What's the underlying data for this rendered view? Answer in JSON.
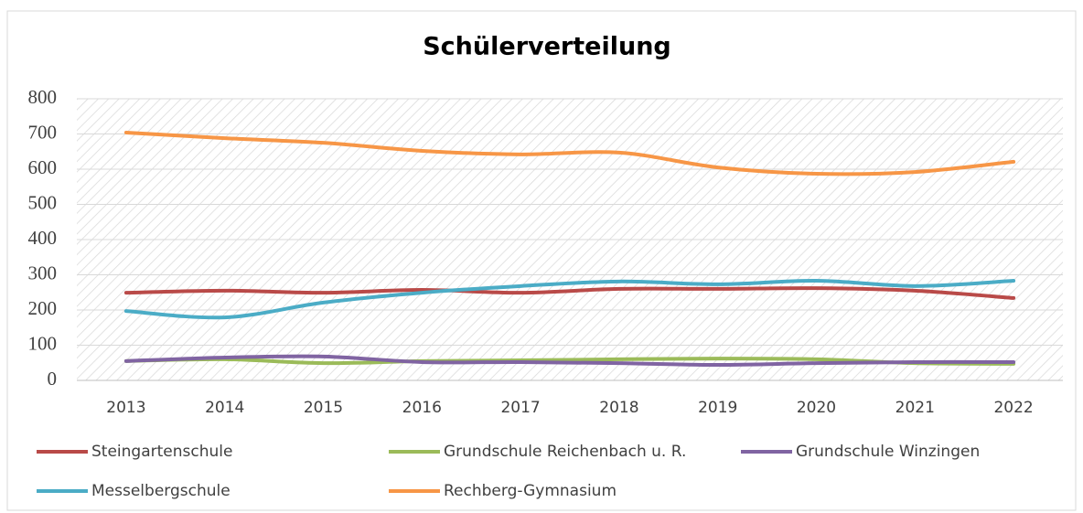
{
  "chart_data": {
    "type": "line",
    "title": "Schülerverteilung",
    "categories": [
      "2013",
      "2014",
      "2015",
      "2016",
      "2017",
      "2018",
      "2019",
      "2020",
      "2021",
      "2022"
    ],
    "series": [
      {
        "name": "Steingartenschule",
        "color": "#b94a48",
        "values": [
          249,
          255,
          249,
          257,
          249,
          260,
          260,
          262,
          255,
          234
        ]
      },
      {
        "name": "Grundschule Reichenbach u. R.",
        "color": "#9bbb59",
        "values": [
          55,
          60,
          49,
          55,
          57,
          60,
          62,
          60,
          49,
          47
        ]
      },
      {
        "name": "Grundschule Winzingen",
        "color": "#8064a2",
        "values": [
          55,
          65,
          68,
          52,
          52,
          49,
          44,
          49,
          52,
          52
        ]
      },
      {
        "name": "Messelbergschule",
        "color": "#4bacc6",
        "values": [
          197,
          179,
          221,
          249,
          268,
          281,
          273,
          283,
          268,
          283
        ]
      },
      {
        "name": "Rechberg-Gymnasium",
        "color": "#f79646",
        "values": [
          704,
          688,
          675,
          652,
          642,
          647,
          605,
          587,
          592,
          621
        ]
      }
    ],
    "ylim": [
      0,
      800
    ],
    "yticks": [
      0,
      100,
      200,
      300,
      400,
      500,
      600,
      700,
      800
    ],
    "grid": true,
    "smooth": true,
    "legend": "bottom"
  }
}
